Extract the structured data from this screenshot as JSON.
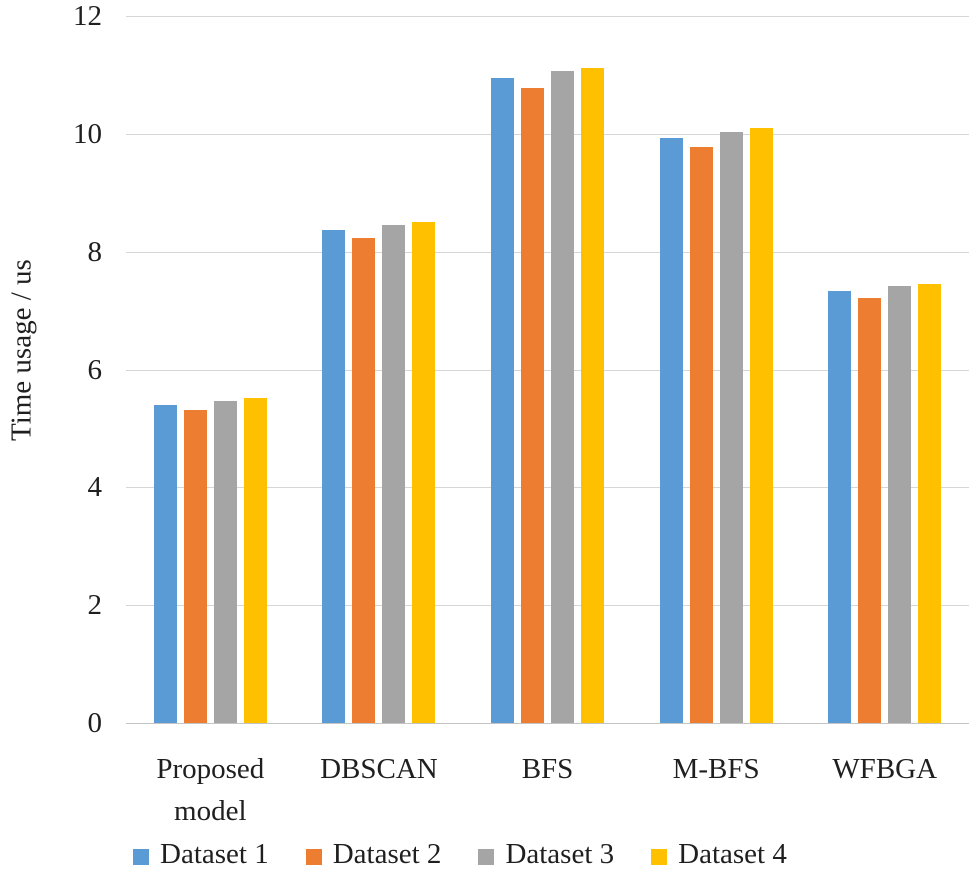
{
  "chart_data": {
    "type": "bar",
    "title": "",
    "xlabel": "",
    "ylabel": "Time usage / us",
    "ylim": [
      0,
      12
    ],
    "yticks": [
      0,
      2,
      4,
      6,
      8,
      10,
      12
    ],
    "grid": true,
    "legend_position": "bottom",
    "categories": [
      "Proposed model",
      "DBSCAN",
      "BFS",
      "M-BFS",
      "WFBGA"
    ],
    "series": [
      {
        "name": "Dataset 1",
        "color": "#5B9BD5",
        "values": [
          5.4,
          8.37,
          10.94,
          9.93,
          7.34
        ]
      },
      {
        "name": "Dataset 2",
        "color": "#ED7D31",
        "values": [
          5.31,
          8.23,
          10.77,
          9.78,
          7.21
        ]
      },
      {
        "name": "Dataset 3",
        "color": "#A5A5A5",
        "values": [
          5.47,
          8.46,
          11.06,
          10.03,
          7.41
        ]
      },
      {
        "name": "Dataset 4",
        "color": "#FFC000",
        "values": [
          5.51,
          8.51,
          11.12,
          10.1,
          7.45
        ]
      }
    ]
  },
  "colors": {
    "text": "#1f1f1f",
    "gridline": "#d6d6d6",
    "baseline": "#c4c4c4",
    "background": "#ffffff"
  }
}
